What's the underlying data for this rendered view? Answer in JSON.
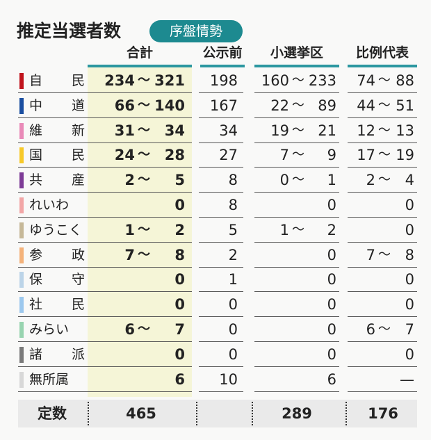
{
  "title": "推定当選者数",
  "badge": "序盤情勢",
  "headers": {
    "total": "合計",
    "before": "公示前",
    "district": "小選挙区",
    "pr": "比例代表"
  },
  "accent": "#1d8a90",
  "rows": [
    {
      "party": "自 民",
      "color": "#c0131c",
      "total": [
        "234",
        "321"
      ],
      "before": "198",
      "district": [
        "160",
        "233"
      ],
      "pr": [
        "74",
        "88"
      ]
    },
    {
      "party": "中 道",
      "color": "#1a4ea0",
      "total": [
        "66",
        "140"
      ],
      "before": "167",
      "district": [
        "22",
        "89"
      ],
      "pr": [
        "44",
        "51"
      ]
    },
    {
      "party": "維 新",
      "color": "#e98ab8",
      "total": [
        "31",
        "34"
      ],
      "before": "34",
      "district": [
        "19",
        "21"
      ],
      "pr": [
        "12",
        "13"
      ]
    },
    {
      "party": "国 民",
      "color": "#f7c928",
      "total": [
        "24",
        "28"
      ],
      "before": "27",
      "district": [
        "7",
        "9"
      ],
      "pr": [
        "17",
        "19"
      ]
    },
    {
      "party": "共 産",
      "color": "#7d3b96",
      "total": [
        "2",
        "5"
      ],
      "before": "8",
      "district": [
        "0",
        "1"
      ],
      "pr": [
        "2",
        "4"
      ]
    },
    {
      "party": "れいわ",
      "color": "#f2a6a6",
      "total": [
        "",
        "0"
      ],
      "before": "8",
      "district": [
        "",
        "0"
      ],
      "pr": [
        "",
        "0"
      ]
    },
    {
      "party": "ゆうこく",
      "color": "#c6b898",
      "total": [
        "1",
        "2"
      ],
      "before": "5",
      "district": [
        "1",
        "2"
      ],
      "pr": [
        "",
        "0"
      ]
    },
    {
      "party": "参 政",
      "color": "#f4b27a",
      "total": [
        "7",
        "8"
      ],
      "before": "2",
      "district": [
        "",
        "0"
      ],
      "pr": [
        "7",
        "8"
      ]
    },
    {
      "party": "保 守",
      "color": "#bcd4e8",
      "total": [
        "",
        "0"
      ],
      "before": "1",
      "district": [
        "",
        "0"
      ],
      "pr": [
        "",
        "0"
      ]
    },
    {
      "party": "社 民",
      "color": "#9cc8ee",
      "total": [
        "",
        "0"
      ],
      "before": "0",
      "district": [
        "",
        "0"
      ],
      "pr": [
        "",
        "0"
      ]
    },
    {
      "party": "みらい",
      "color": "#98d4b0",
      "total": [
        "6",
        "7"
      ],
      "before": "0",
      "district": [
        "",
        "0"
      ],
      "pr": [
        "6",
        "7"
      ]
    },
    {
      "party": "諸 派",
      "color": "#7a7a7a",
      "total": [
        "",
        "0"
      ],
      "before": "0",
      "district": [
        "",
        "0"
      ],
      "pr": [
        "",
        "0"
      ]
    },
    {
      "party": "無所属",
      "color": "#d8d8d8",
      "total": [
        "",
        "6"
      ],
      "before": "10",
      "district": [
        "",
        "6"
      ],
      "pr": [
        "",
        "—"
      ]
    }
  ],
  "tilde": "～",
  "footer": {
    "label": "定数",
    "total": "465",
    "district": "289",
    "pr": "176"
  }
}
